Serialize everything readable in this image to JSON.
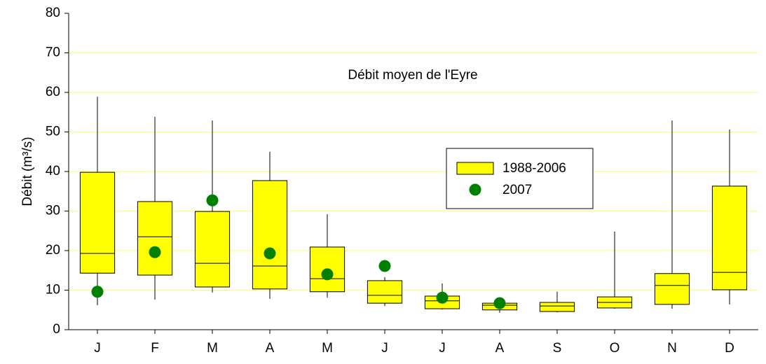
{
  "chart_data": {
    "type": "box",
    "title": "Débit moyen de l'Eyre",
    "y_label": "Débit (m³/s)",
    "categories": [
      "J",
      "F",
      "M",
      "A",
      "M",
      "J",
      "J",
      "A",
      "S",
      "O",
      "N",
      "D"
    ],
    "ylim": [
      0,
      80
    ],
    "yticks": [
      0,
      10,
      20,
      30,
      40,
      50,
      60,
      70,
      80
    ],
    "grid": true,
    "grid_color": "#ffff66",
    "series": [
      {
        "name": "1988-2006",
        "color": "#ffff00",
        "min": [
          6.2,
          7.6,
          9.4,
          7.8,
          8.1,
          6.0,
          5.1,
          4.3,
          4.4,
          5.3,
          5.3,
          6.4
        ],
        "q1": [
          14.3,
          13.8,
          10.8,
          10.3,
          9.6,
          6.7,
          5.3,
          5.0,
          4.6,
          5.5,
          6.4,
          10.1
        ],
        "median": [
          19.3,
          23.5,
          16.8,
          16.1,
          12.9,
          8.7,
          7.3,
          6.2,
          6.0,
          6.9,
          11.2,
          14.5
        ],
        "q3": [
          39.8,
          32.4,
          29.9,
          37.7,
          20.9,
          12.4,
          8.5,
          6.7,
          6.9,
          8.3,
          14.2,
          36.3
        ],
        "max": [
          58.9,
          53.8,
          52.9,
          45.0,
          29.2,
          13.3,
          11.7,
          6.9,
          9.6,
          24.8,
          52.9,
          50.6
        ]
      },
      {
        "name": "2007",
        "color": "#008000",
        "values": [
          9.6,
          19.6,
          32.7,
          19.3,
          14.0,
          16.1,
          8.1,
          6.7,
          null,
          null,
          null,
          null
        ]
      }
    ]
  }
}
